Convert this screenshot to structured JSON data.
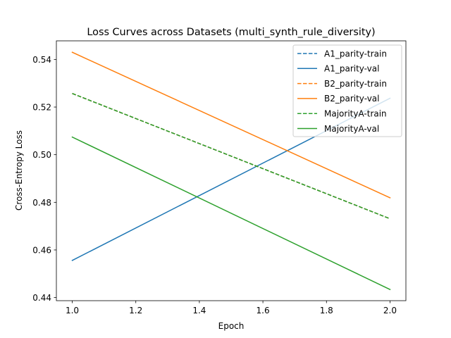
{
  "chart_data": {
    "type": "line",
    "title": "Loss Curves across Datasets (multi_synth_rule_diversity)",
    "xlabel": "Epoch",
    "ylabel": "Cross-Entropy Loss",
    "xlim": [
      0.95,
      2.05
    ],
    "ylim": [
      0.4387,
      0.5478
    ],
    "xticks": [
      1.0,
      1.2,
      1.4,
      1.6,
      1.8,
      2.0
    ],
    "xtick_labels": [
      "1.0",
      "1.2",
      "1.4",
      "1.6",
      "1.8",
      "2.0"
    ],
    "yticks": [
      0.44,
      0.46,
      0.48,
      0.5,
      0.52,
      0.54
    ],
    "ytick_labels": [
      "0.44",
      "0.46",
      "0.48",
      "0.50",
      "0.52",
      "0.54"
    ],
    "grid": false,
    "legend_position": "top-right",
    "series": [
      {
        "name": "A1_parity-train",
        "color": "#1f77b4",
        "dashed": true,
        "x": [
          1,
          2
        ],
        "y": [
          0.5257,
          0.4731
        ]
      },
      {
        "name": "A1_parity-val",
        "color": "#1f77b4",
        "dashed": false,
        "x": [
          1,
          2
        ],
        "y": [
          0.4556,
          0.5237
        ]
      },
      {
        "name": "B2_parity-train",
        "color": "#ff7f0e",
        "dashed": true,
        "x": [
          1,
          2
        ],
        "y": [
          0.5257,
          0.4731
        ]
      },
      {
        "name": "B2_parity-val",
        "color": "#ff7f0e",
        "dashed": false,
        "x": [
          1,
          2
        ],
        "y": [
          0.543,
          0.4819
        ]
      },
      {
        "name": "MajorityA-train",
        "color": "#2ca02c",
        "dashed": true,
        "x": [
          1,
          2
        ],
        "y": [
          0.5257,
          0.4731
        ]
      },
      {
        "name": "MajorityA-val",
        "color": "#2ca02c",
        "dashed": false,
        "x": [
          1,
          2
        ],
        "y": [
          0.5074,
          0.4434
        ]
      }
    ]
  }
}
